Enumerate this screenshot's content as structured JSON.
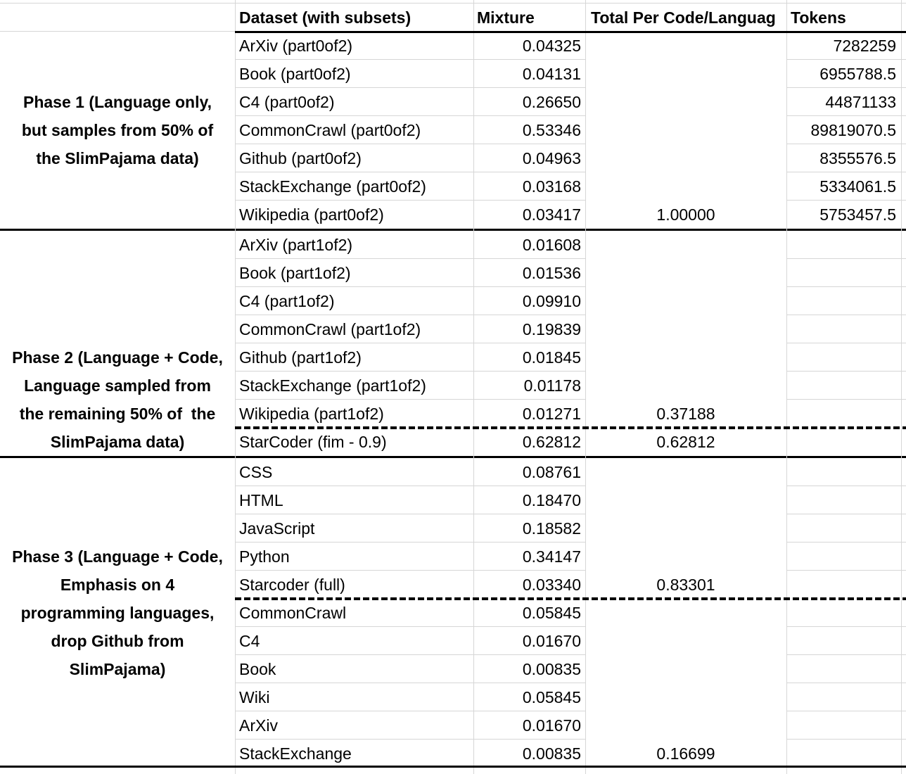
{
  "sheet": {
    "header": {
      "dataset": "Dataset (with subsets)",
      "mixture": "Mixture",
      "total": "Total Per Code/Languag",
      "tokens": "Tokens"
    },
    "phases": [
      {
        "name": "Phase 1",
        "label_lines": [
          "Phase 1 (Language only,",
          "but samples from 50% of",
          "the SlimPajama data)"
        ],
        "label_valign": "center",
        "sections": [
          {
            "total": "1.00000",
            "rows": [
              {
                "dataset": "ArXiv (part0of2)",
                "mixture": "0.04325",
                "tokens": "7282259"
              },
              {
                "dataset": "Book (part0of2)",
                "mixture": "0.04131",
                "tokens": "6955788.5"
              },
              {
                "dataset": "C4 (part0of2)",
                "mixture": "0.26650",
                "tokens": "44871133"
              },
              {
                "dataset": "CommonCrawl (part0of2)",
                "mixture": "0.53346",
                "tokens": "89819070.5"
              },
              {
                "dataset": "Github (part0of2)",
                "mixture": "0.04963",
                "tokens": "8355576.5"
              },
              {
                "dataset": "StackExchange (part0of2)",
                "mixture": "0.03168",
                "tokens": "5334061.5"
              },
              {
                "dataset": "Wikipedia (part0of2)",
                "mixture": "0.03417",
                "tokens": "5753457.5"
              }
            ]
          }
        ]
      },
      {
        "name": "Phase 2",
        "label_lines": [
          "Phase 2 (Language + Code,",
          "Language sampled from",
          "the remaining 50% of  the",
          "SlimPajama data)"
        ],
        "label_valign": "bottom",
        "sections": [
          {
            "total": "0.37188",
            "rows": [
              {
                "dataset": "ArXiv (part1of2)",
                "mixture": "0.01608"
              },
              {
                "dataset": "Book (part1of2)",
                "mixture": "0.01536"
              },
              {
                "dataset": "C4 (part1of2)",
                "mixture": "0.09910"
              },
              {
                "dataset": "CommonCrawl (part1of2)",
                "mixture": "0.19839"
              },
              {
                "dataset": "Github (part1of2)",
                "mixture": "0.01845"
              },
              {
                "dataset": "StackExchange (part1of2)",
                "mixture": "0.01178"
              },
              {
                "dataset": "Wikipedia (part1of2)",
                "mixture": "0.01271"
              }
            ]
          },
          {
            "total": "0.62812",
            "rows": [
              {
                "dataset": "StarCoder (fim - 0.9)",
                "mixture": "0.62812"
              }
            ]
          }
        ]
      },
      {
        "name": "Phase 3",
        "label_lines": [
          "Phase 3 (Language + Code,",
          "Emphasis on 4",
          "programming languages,",
          "drop Github from",
          "SlimPajama)"
        ],
        "label_valign": "center",
        "sections": [
          {
            "total": "0.83301",
            "rows": [
              {
                "dataset": "CSS",
                "mixture": "0.08761"
              },
              {
                "dataset": "HTML",
                "mixture": "0.18470"
              },
              {
                "dataset": "JavaScript",
                "mixture": "0.18582"
              },
              {
                "dataset": "Python",
                "mixture": "0.34147"
              },
              {
                "dataset": "Starcoder (full)",
                "mixture": "0.03340"
              }
            ]
          },
          {
            "total": "0.16699",
            "rows": [
              {
                "dataset": "CommonCrawl",
                "mixture": "0.05845"
              },
              {
                "dataset": "C4",
                "mixture": "0.01670"
              },
              {
                "dataset": "Book",
                "mixture": "0.00835"
              },
              {
                "dataset": "Wiki",
                "mixture": "0.05845"
              },
              {
                "dataset": "ArXiv",
                "mixture": "0.01670"
              },
              {
                "dataset": "StackExchange",
                "mixture": "0.00835"
              }
            ]
          }
        ]
      }
    ],
    "colors": {
      "gridline": "#d6d6d6",
      "text": "#000000",
      "background": "#ffffff",
      "separator": "#000000"
    }
  }
}
